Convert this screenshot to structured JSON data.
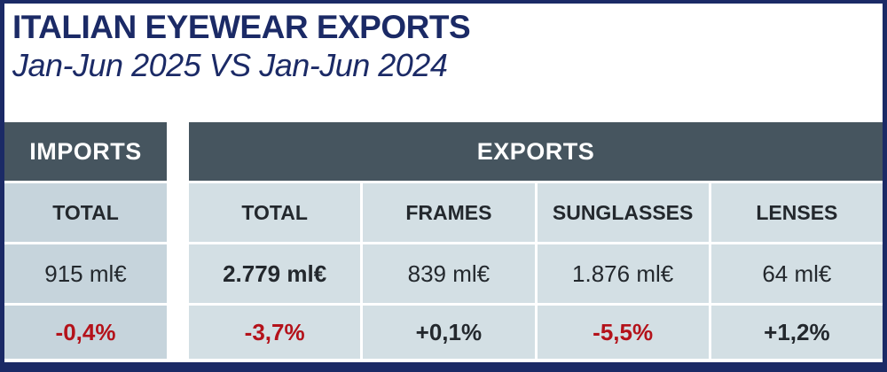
{
  "header": {
    "title": "ITALIAN EYEWEAR EXPORTS",
    "subtitle": "Jan-Jun 2025 VS Jan-Jun 2024"
  },
  "imports": {
    "header": "IMPORTS",
    "column": {
      "label": "TOTAL",
      "value": "915 ml€",
      "change": "-0,4%",
      "negative": true
    }
  },
  "exports": {
    "header": "EXPORTS",
    "columns": [
      {
        "label": "TOTAL",
        "value": "2.779 ml€",
        "change": "-3,7%",
        "negative": true,
        "emphasis": true
      },
      {
        "label": "FRAMES",
        "value": "839 ml€",
        "change": "+0,1%",
        "negative": false,
        "emphasis": false
      },
      {
        "label": "SUNGLASSES",
        "value": "1.876 ml€",
        "change": "-5,5%",
        "negative": true,
        "emphasis": false
      },
      {
        "label": "LENSES",
        "value": "64 ml€",
        "change": "+1,2%",
        "negative": false,
        "emphasis": false
      }
    ]
  },
  "colors": {
    "navy": "#1b2a66",
    "slate_header": "#46555f",
    "imports_cell_bg": "#c6d4dc",
    "exports_cell_bg": "#d3dfe4",
    "negative_red": "#b4121a",
    "text_dark": "#23282d"
  },
  "chart_data": {
    "type": "table",
    "title": "ITALIAN EYEWEAR EXPORTS",
    "subtitle": "Jan-Jun 2025 VS Jan-Jun 2024",
    "unit": "ml€",
    "sections": [
      {
        "name": "IMPORTS",
        "categories": [
          "TOTAL"
        ],
        "values_mln_eur": [
          915
        ],
        "change_pct": [
          -0.4
        ]
      },
      {
        "name": "EXPORTS",
        "categories": [
          "TOTAL",
          "FRAMES",
          "SUNGLASSES",
          "LENSES"
        ],
        "values_mln_eur": [
          2779,
          839,
          1876,
          64
        ],
        "change_pct": [
          -3.7,
          0.1,
          -5.5,
          1.2
        ]
      }
    ]
  }
}
